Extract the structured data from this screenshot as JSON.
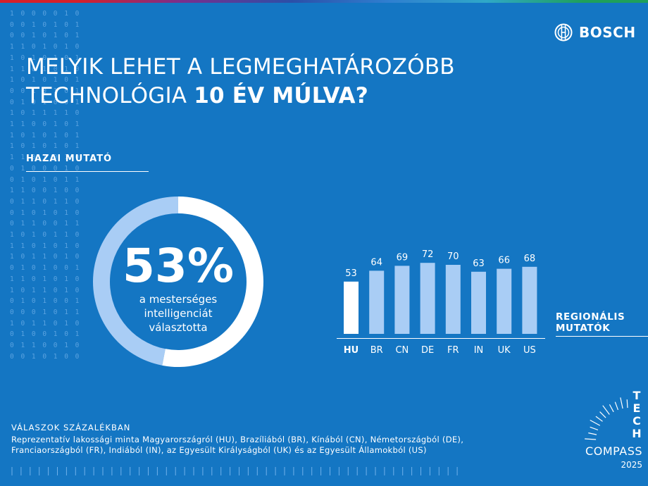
{
  "brand": {
    "name": "BOSCH",
    "logo_icon": "bosch-armature-icon"
  },
  "title": {
    "line1": "MELYIK LEHET A LEGMEGHATÁROZÓBB",
    "line2_regular": "TECHNOLÓGIA ",
    "line2_bold": "10 ÉV MÚLVA?"
  },
  "home": {
    "label": "HAZAI MUTATÓ",
    "value": "53%",
    "caption": "a mesterséges intelligenciát választotta"
  },
  "regional": {
    "line1": "REGIONÁLIS",
    "line2": "MUTATÓK"
  },
  "chart_data": {
    "type": "bar",
    "categories": [
      "HU",
      "BR",
      "CN",
      "DE",
      "FR",
      "IN",
      "UK",
      "US"
    ],
    "values": [
      53,
      64,
      69,
      72,
      70,
      63,
      66,
      68
    ],
    "highlight_category": "HU",
    "colors": {
      "highlight": "#ffffff",
      "default": "#a9cdf5"
    },
    "ylim": [
      0,
      100
    ],
    "grid": false
  },
  "donut_data": {
    "type": "pie",
    "value": 53,
    "max": 100,
    "colors": {
      "filled": "#ffffff",
      "rest": "#a9cdf5"
    }
  },
  "footer": {
    "title": "VÁLASZOK SZÁZALÉKBAN",
    "line1": "Reprezentatív lakossági minta Magyarországról (HU), Brazíliából (BR), Kínából (CN), Németországból (DE),",
    "line2": "Franciaországból (FR), Indiából (IN), az Egyesült Királyságból (UK) és az Egyesült Államokból (US)"
  },
  "tech_compass": {
    "letters": [
      "T",
      "E",
      "C",
      "H"
    ],
    "word": "COMPASS",
    "year": "2025"
  }
}
